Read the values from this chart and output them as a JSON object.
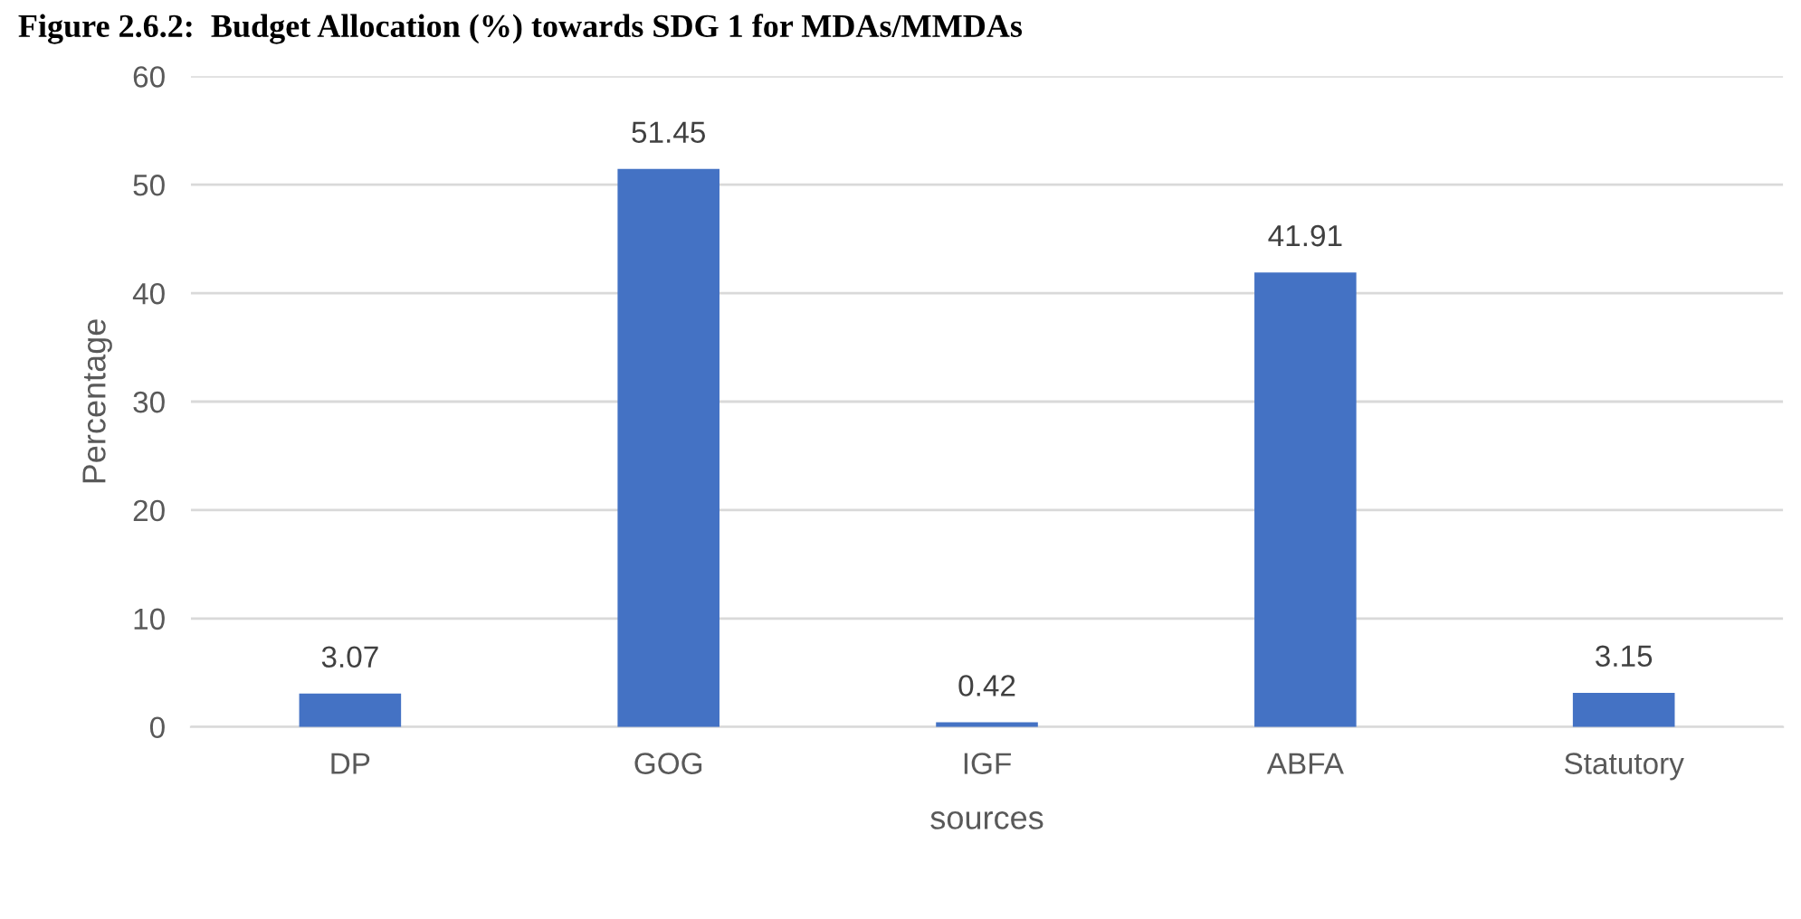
{
  "chart_data": {
    "type": "bar",
    "title": "Figure 2.6.2:  Budget Allocation (%) towards SDG 1 for MDAs/MMDAs",
    "xlabel": "sources",
    "ylabel": "Percentage",
    "categories": [
      "DP",
      "GOG",
      "IGF",
      "ABFA",
      "Statutory"
    ],
    "values": [
      3.07,
      51.45,
      0.42,
      41.91,
      3.15
    ],
    "color": "#4472c4",
    "ylim": [
      0,
      60
    ],
    "yticks": [
      0,
      10,
      20,
      30,
      40,
      50,
      60
    ],
    "grid": "y",
    "data_labels": true
  }
}
